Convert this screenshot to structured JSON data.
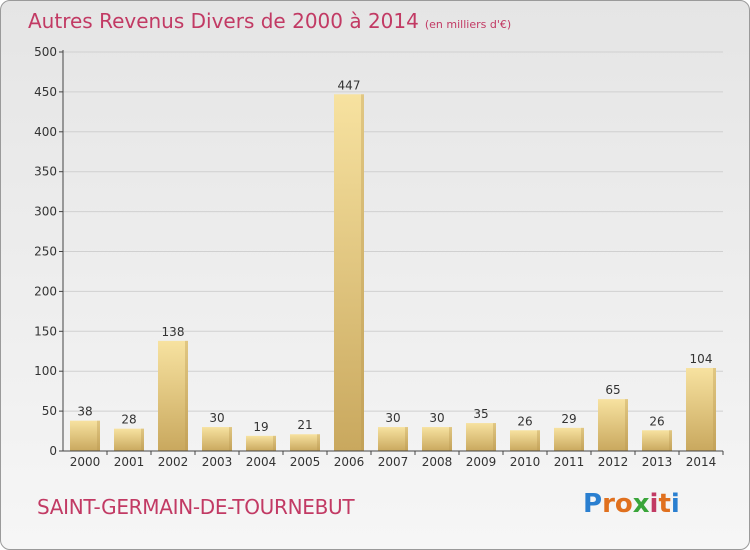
{
  "header": {
    "title": "Autres Revenus Divers de 2000 à 2014",
    "unit": "(en milliers d'€)"
  },
  "footer": {
    "commune": "SAINT-GERMAIN-DE-TOURNEBUT",
    "logo_letters": [
      "P",
      "r",
      "o",
      "x",
      "i",
      "t",
      "i"
    ],
    "logo_colors": [
      "#2a7fd0",
      "#e0701e",
      "#e0701e",
      "#3aa53a",
      "#c23a64",
      "#e0701e",
      "#2a7fd0"
    ]
  },
  "colors": {
    "bar_light": "#f7e2a0",
    "bar_dark": "#c9a85e",
    "title": "#c23a64",
    "axis": "#444444",
    "grid": "#d0d0d0"
  },
  "chart_data": {
    "type": "bar",
    "categories": [
      "2000",
      "2001",
      "2002",
      "2003",
      "2004",
      "2005",
      "2006",
      "2007",
      "2008",
      "2009",
      "2010",
      "2011",
      "2012",
      "2013",
      "2014"
    ],
    "values": [
      38,
      28,
      138,
      30,
      19,
      21,
      447,
      30,
      30,
      35,
      26,
      29,
      65,
      26,
      104
    ],
    "title": "Autres Revenus Divers de 2000 à 2014",
    "ylim": [
      0,
      500
    ],
    "yticks": [
      0,
      50,
      100,
      150,
      200,
      250,
      300,
      350,
      400,
      450,
      500
    ],
    "grid": true,
    "data_labels": true
  }
}
